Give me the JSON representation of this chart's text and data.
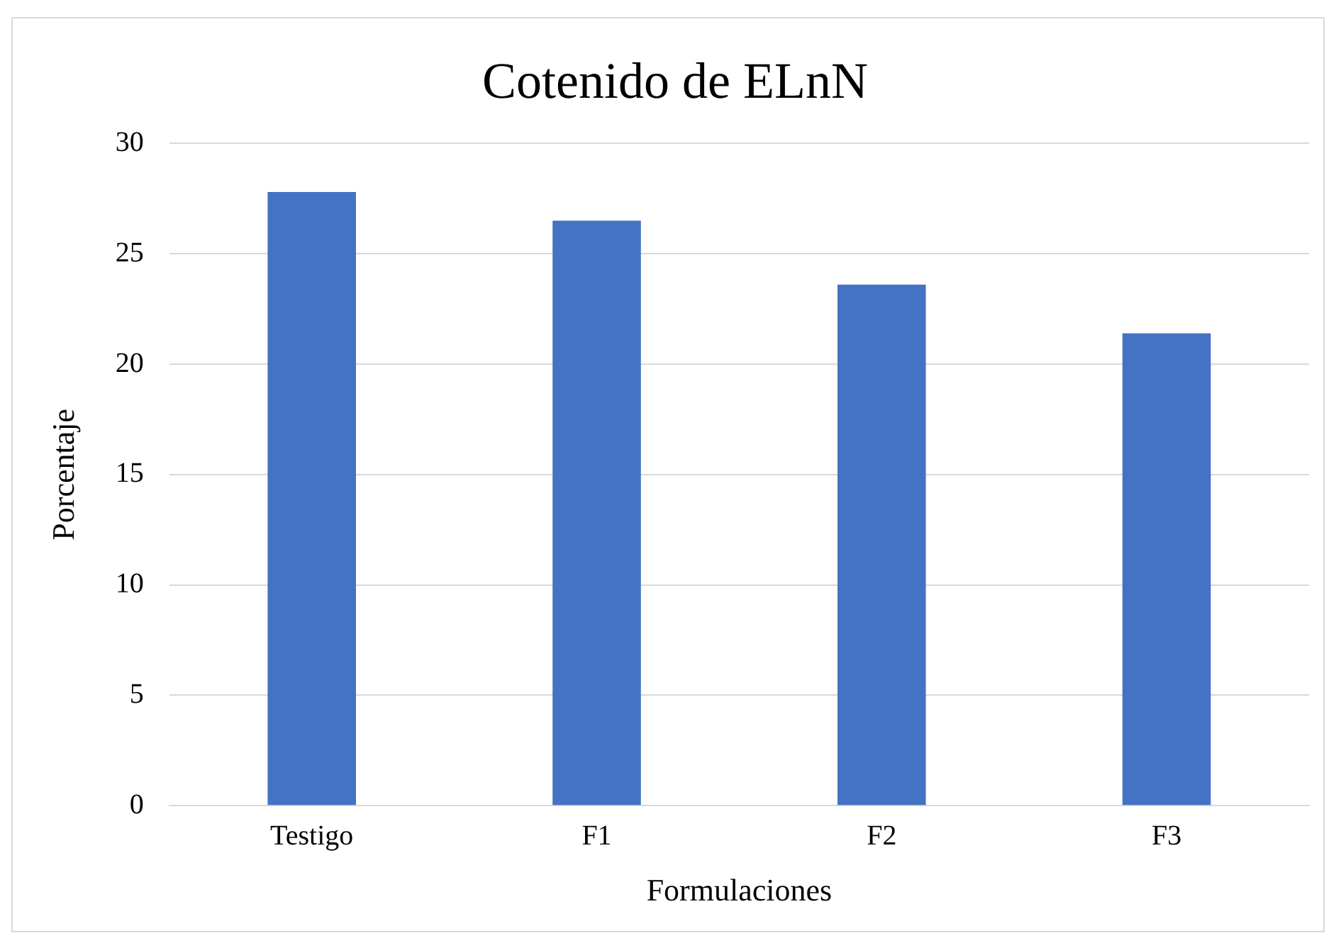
{
  "chart_data": {
    "type": "bar",
    "title": "Cotenido de ELnN",
    "xlabel": "Formulaciones",
    "ylabel": "Porcentaje",
    "categories": [
      "Testigo",
      "F1",
      "F2",
      "F3"
    ],
    "values": [
      27.8,
      26.5,
      23.6,
      21.4
    ],
    "color": "#4472c4",
    "ylim": [
      0,
      30
    ],
    "yticks": [
      0,
      5,
      10,
      15,
      20,
      25,
      30
    ],
    "grid": "y",
    "legend": false
  }
}
